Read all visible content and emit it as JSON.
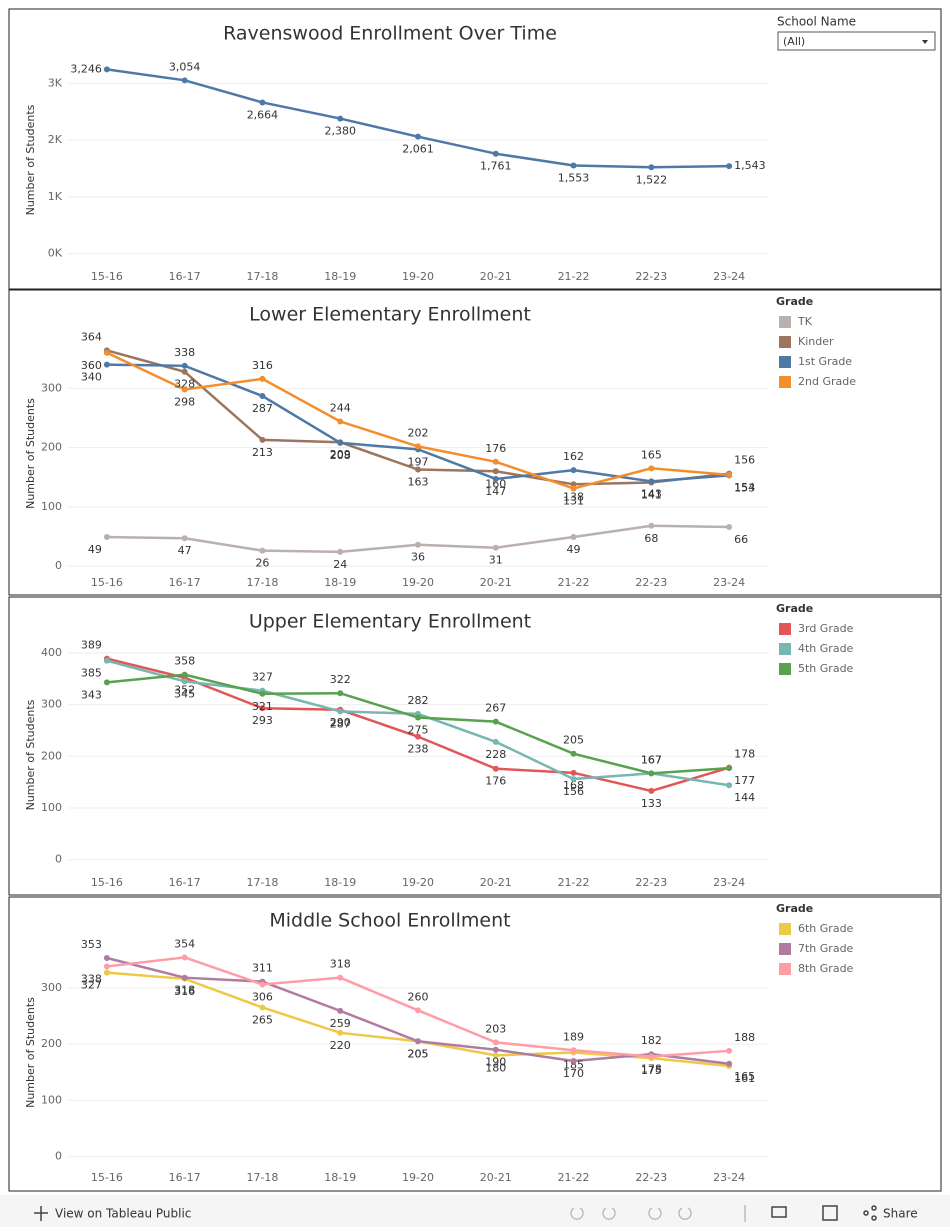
{
  "filter": {
    "label": "School Name",
    "value": "(All)"
  },
  "footer": {
    "link": "View on Tableau Public",
    "share": "Share"
  },
  "chart_data": [
    {
      "type": "line",
      "title": "Ravenswood Enrollment Over Time",
      "y_label": "Number of Students",
      "categories": [
        "15-16",
        "16-17",
        "17-18",
        "18-19",
        "19-20",
        "20-21",
        "21-22",
        "22-23",
        "23-24"
      ],
      "values": [
        3246,
        3054,
        2664,
        2380,
        2061,
        1761,
        1553,
        1522,
        1543
      ],
      "value_labels": [
        "3,246",
        "3,054",
        "2,664",
        "2,380",
        "2,061",
        "1,761",
        "1,553",
        "1,522",
        "1,543"
      ],
      "color": "#4e79a7",
      "ylim": [
        -200,
        3500
      ],
      "yticks": [
        {
          "value": 0,
          "label": "0K"
        },
        {
          "value": 1000,
          "label": "1K"
        },
        {
          "value": 2000,
          "label": "2K"
        },
        {
          "value": 3000,
          "label": "3K"
        }
      ],
      "grid": true
    },
    {
      "type": "line",
      "title": "Lower Elementary Enrollment",
      "y_label": "Number of Students",
      "legend_title": "Grade",
      "categories": [
        "15-16",
        "16-17",
        "17-18",
        "18-19",
        "19-20",
        "20-21",
        "21-22",
        "22-23",
        "23-24"
      ],
      "series": [
        {
          "name": "TK",
          "color": "#bab0ac",
          "values": [
            49,
            47,
            26,
            24,
            36,
            31,
            49,
            68,
            66
          ]
        },
        {
          "name": "Kinder",
          "color": "#9c755f",
          "values": [
            364,
            328,
            213,
            209,
            163,
            160,
            138,
            141,
            156
          ]
        },
        {
          "name": "1st Grade",
          "color": "#4e79a7",
          "values": [
            340,
            338,
            287,
            208,
            197,
            147,
            162,
            143,
            153
          ]
        },
        {
          "name": "2nd Grade",
          "color": "#f28e2b",
          "values": [
            360,
            298,
            316,
            244,
            202,
            176,
            131,
            165,
            154
          ]
        }
      ],
      "ylim": [
        -10,
        390
      ],
      "yticks": [
        0,
        100,
        200,
        300
      ],
      "grid": true
    },
    {
      "type": "line",
      "title": "Upper Elementary Enrollment",
      "y_label": "Number of Students",
      "legend_title": "Grade",
      "categories": [
        "15-16",
        "16-17",
        "17-18",
        "18-19",
        "19-20",
        "20-21",
        "21-22",
        "22-23",
        "23-24"
      ],
      "series": [
        {
          "name": "3rd Grade",
          "color": "#e15759",
          "values": [
            389,
            352,
            293,
            290,
            238,
            176,
            168,
            133,
            178
          ]
        },
        {
          "name": "4th Grade",
          "color": "#76b7b2",
          "values": [
            385,
            345,
            327,
            287,
            282,
            228,
            156,
            167,
            144
          ]
        },
        {
          "name": "5th Grade",
          "color": "#59a14f",
          "values": [
            343,
            358,
            321,
            322,
            275,
            267,
            205,
            167,
            177
          ]
        }
      ],
      "ylim": [
        -20,
        425
      ],
      "yticks": [
        0,
        100,
        200,
        300,
        400
      ],
      "grid": true
    },
    {
      "type": "line",
      "title": "Middle School Enrollment",
      "y_label": "Number of Students",
      "legend_title": "Grade",
      "categories": [
        "15-16",
        "16-17",
        "17-18",
        "18-19",
        "19-20",
        "20-21",
        "21-22",
        "22-23",
        "23-24"
      ],
      "series": [
        {
          "name": "6th Grade",
          "color": "#edc948",
          "values": [
            327,
            316,
            265,
            220,
            205,
            180,
            185,
            175,
            161
          ]
        },
        {
          "name": "7th Grade",
          "color": "#b07aa1",
          "values": [
            353,
            318,
            311,
            259,
            205,
            190,
            170,
            182,
            165
          ]
        },
        {
          "name": "8th Grade",
          "color": "#ff9da7",
          "values": [
            338,
            354,
            306,
            318,
            260,
            203,
            189,
            178,
            188
          ]
        }
      ],
      "ylim": [
        -15,
        385
      ],
      "yticks": [
        0,
        100,
        200,
        300
      ],
      "grid": true
    }
  ]
}
